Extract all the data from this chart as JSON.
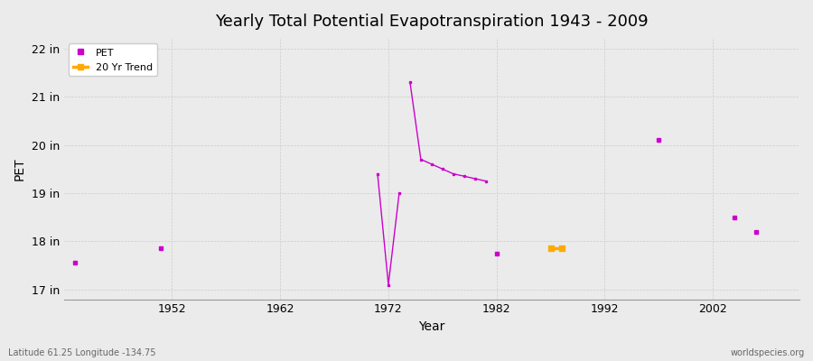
{
  "title": "Yearly Total Potential Evapotranspiration 1943 - 2009",
  "xlabel": "Year",
  "ylabel": "PET",
  "footnote_left": "Latitude 61.25 Longitude -134.75",
  "footnote_right": "worldspecies.org",
  "background_color": "#ebebeb",
  "plot_bg_color": "#ebebeb",
  "line_color": "#cc00cc",
  "trend_color": "#ffaa00",
  "ylim": [
    16.8,
    22.2
  ],
  "yticks": [
    17,
    18,
    19,
    20,
    21,
    22
  ],
  "ytick_labels": [
    "17 in",
    "18 in",
    "19 in",
    "20 in",
    "21 in",
    "22 in"
  ],
  "xlim": [
    1942,
    2010
  ],
  "xticks": [
    1952,
    1962,
    1972,
    1982,
    1992,
    2002
  ],
  "segments": [
    {
      "years": [
        1943
      ],
      "values": [
        17.55
      ]
    },
    {
      "years": [
        1951
      ],
      "values": [
        17.85
      ]
    },
    {
      "years": [
        1971,
        1972,
        1973
      ],
      "values": [
        19.4,
        17.1,
        19.0
      ]
    },
    {
      "years": [
        1974,
        1975,
        1976,
        1977,
        1978,
        1979,
        1980,
        1981
      ],
      "values": [
        21.3,
        19.7,
        19.6,
        19.5,
        19.4,
        19.35,
        19.3,
        19.25
      ]
    },
    {
      "years": [
        1982
      ],
      "values": [
        17.75
      ]
    },
    {
      "years": [
        1987,
        1988
      ],
      "values": [
        17.85,
        17.85
      ]
    },
    {
      "years": [
        1997
      ],
      "values": [
        20.1
      ]
    },
    {
      "years": [
        2004
      ],
      "values": [
        18.5
      ]
    },
    {
      "years": [
        2006
      ],
      "values": [
        18.2
      ]
    }
  ],
  "trend_segments": [
    {
      "years": [
        1987,
        1988
      ],
      "values": [
        17.85,
        17.85
      ]
    }
  ],
  "marker_only": [
    {
      "year": 1943,
      "value": 17.55
    },
    {
      "year": 1951,
      "value": 17.85
    },
    {
      "year": 1982,
      "value": 17.75
    },
    {
      "year": 1997,
      "value": 20.1
    },
    {
      "year": 2004,
      "value": 18.5
    },
    {
      "year": 2006,
      "value": 18.2
    }
  ]
}
